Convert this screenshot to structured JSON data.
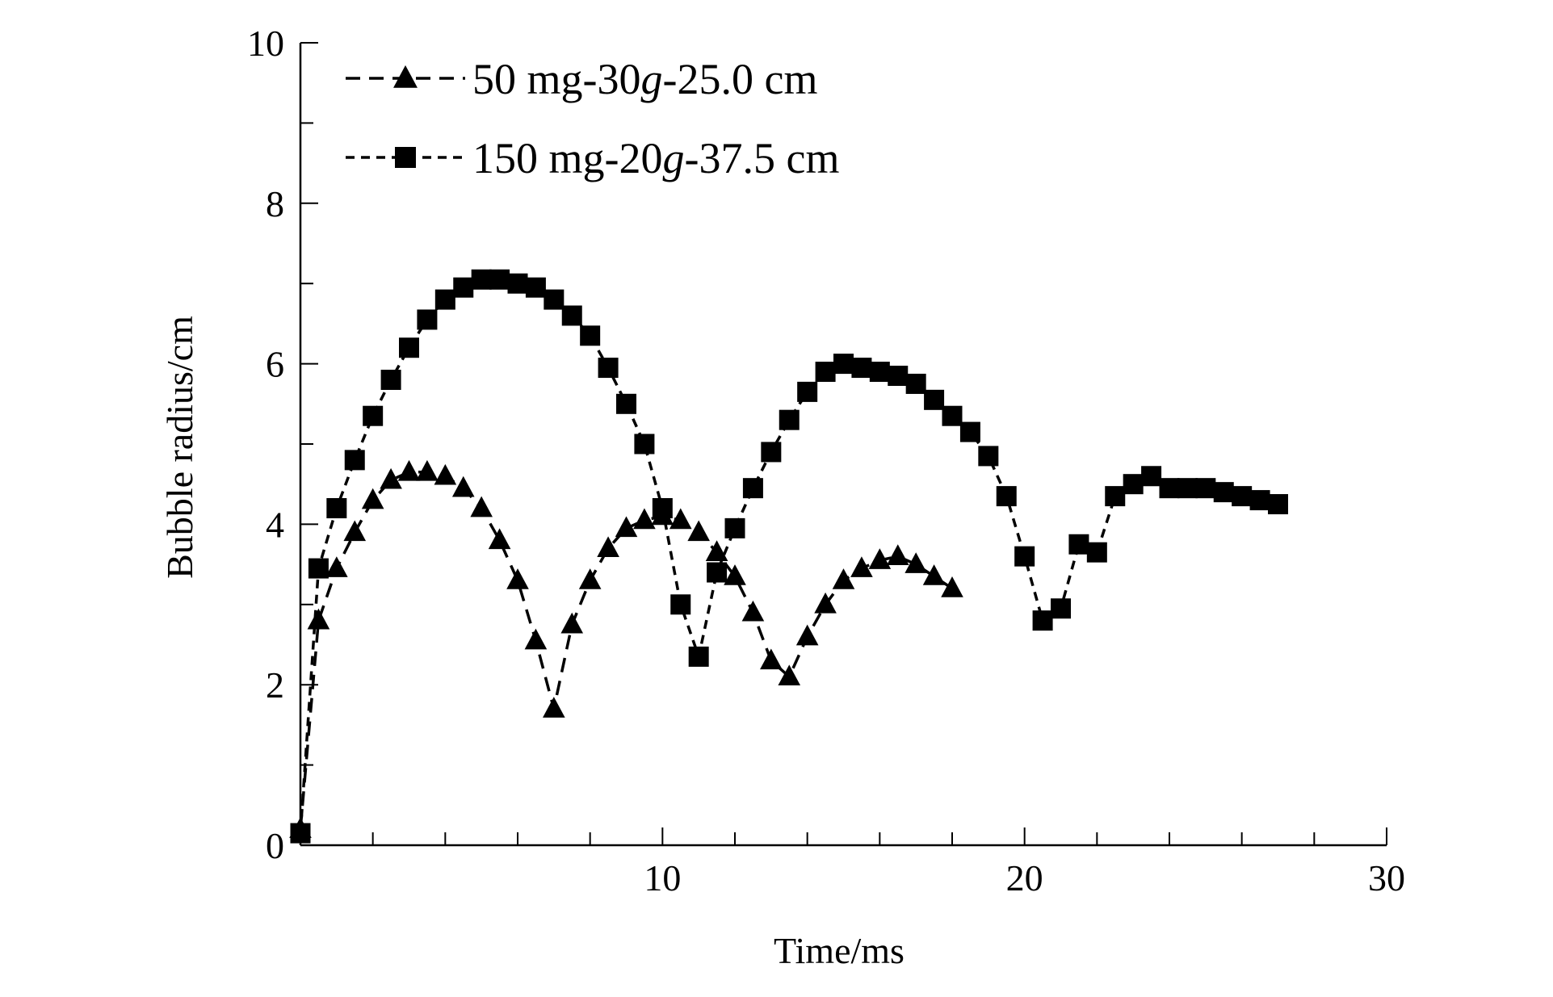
{
  "chart_data": {
    "type": "line",
    "xlabel": "Time/ms",
    "ylabel": "Bubble radius/cm",
    "xlim": [
      0,
      30
    ],
    "ylim": [
      0,
      10
    ],
    "x_ticks": [
      "10",
      "20",
      "30"
    ],
    "y_ticks": [
      "0",
      "2",
      "4",
      "6",
      "8",
      "10"
    ],
    "grid": false,
    "legend_position": "top-left",
    "series": [
      {
        "name_parts": [
          "50 mg-30",
          "g",
          "-25.0 cm"
        ],
        "marker": "triangle",
        "line_style": "dashed",
        "color": "#000000",
        "points": [
          [
            0,
            0.2
          ],
          [
            0.5,
            2.8
          ],
          [
            1.0,
            3.45
          ],
          [
            1.5,
            3.9
          ],
          [
            2.0,
            4.3
          ],
          [
            2.5,
            4.55
          ],
          [
            3.0,
            4.65
          ],
          [
            3.5,
            4.65
          ],
          [
            4.0,
            4.6
          ],
          [
            4.5,
            4.45
          ],
          [
            5.0,
            4.2
          ],
          [
            5.5,
            3.8
          ],
          [
            6.0,
            3.3
          ],
          [
            6.5,
            2.55
          ],
          [
            7.0,
            1.7
          ],
          [
            7.5,
            2.75
          ],
          [
            8.0,
            3.3
          ],
          [
            8.5,
            3.7
          ],
          [
            9.0,
            3.95
          ],
          [
            9.5,
            4.05
          ],
          [
            10.0,
            4.1
          ],
          [
            10.5,
            4.05
          ],
          [
            11.0,
            3.9
          ],
          [
            11.5,
            3.65
          ],
          [
            12.0,
            3.35
          ],
          [
            12.5,
            2.9
          ],
          [
            13.0,
            2.3
          ],
          [
            13.5,
            2.1
          ],
          [
            14.0,
            2.6
          ],
          [
            14.5,
            3.0
          ],
          [
            15.0,
            3.3
          ],
          [
            15.5,
            3.45
          ],
          [
            16.0,
            3.55
          ],
          [
            16.5,
            3.6
          ],
          [
            17.0,
            3.5
          ],
          [
            17.5,
            3.35
          ],
          [
            18.0,
            3.2
          ]
        ]
      },
      {
        "name_parts": [
          "150 mg-20",
          "g",
          "-37.5 cm"
        ],
        "marker": "square",
        "line_style": "dashed",
        "color": "#000000",
        "points": [
          [
            0,
            0.15
          ],
          [
            0.5,
            3.45
          ],
          [
            1.0,
            4.2
          ],
          [
            1.5,
            4.8
          ],
          [
            2.0,
            5.35
          ],
          [
            2.5,
            5.8
          ],
          [
            3.0,
            6.2
          ],
          [
            3.5,
            6.55
          ],
          [
            4.0,
            6.8
          ],
          [
            4.5,
            6.95
          ],
          [
            5.0,
            7.05
          ],
          [
            5.5,
            7.05
          ],
          [
            6.0,
            7.0
          ],
          [
            6.5,
            6.95
          ],
          [
            7.0,
            6.8
          ],
          [
            7.5,
            6.6
          ],
          [
            8.0,
            6.35
          ],
          [
            8.5,
            5.95
          ],
          [
            9.0,
            5.5
          ],
          [
            9.5,
            5.0
          ],
          [
            10.0,
            4.2
          ],
          [
            10.5,
            3.0
          ],
          [
            11.0,
            2.35
          ],
          [
            11.5,
            3.4
          ],
          [
            12.0,
            3.95
          ],
          [
            12.5,
            4.45
          ],
          [
            13.0,
            4.9
          ],
          [
            13.5,
            5.3
          ],
          [
            14.0,
            5.65
          ],
          [
            14.5,
            5.9
          ],
          [
            15.0,
            6.0
          ],
          [
            15.5,
            5.95
          ],
          [
            16.0,
            5.9
          ],
          [
            16.5,
            5.85
          ],
          [
            17.0,
            5.75
          ],
          [
            17.5,
            5.55
          ],
          [
            18.0,
            5.35
          ],
          [
            18.5,
            5.15
          ],
          [
            19.0,
            4.85
          ],
          [
            19.5,
            4.35
          ],
          [
            20.0,
            3.6
          ],
          [
            20.5,
            2.8
          ],
          [
            21.0,
            2.95
          ],
          [
            21.5,
            3.75
          ],
          [
            22.0,
            3.65
          ],
          [
            22.5,
            4.35
          ],
          [
            23.0,
            4.5
          ],
          [
            23.5,
            4.6
          ],
          [
            24.0,
            4.45
          ],
          [
            24.5,
            4.45
          ],
          [
            25.0,
            4.45
          ],
          [
            25.5,
            4.4
          ],
          [
            26.0,
            4.35
          ],
          [
            26.5,
            4.3
          ],
          [
            27.0,
            4.25
          ]
        ]
      }
    ]
  }
}
